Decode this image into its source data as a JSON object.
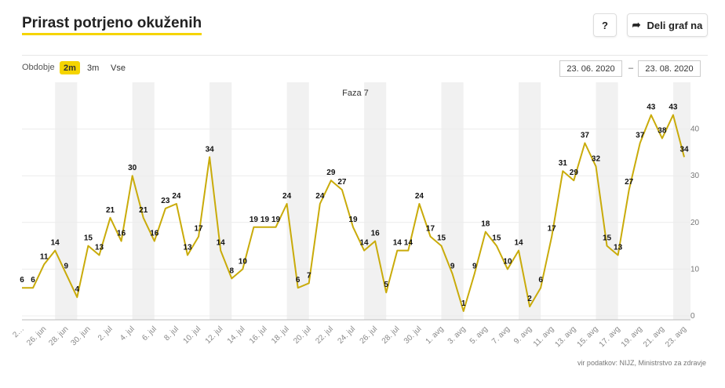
{
  "header": {
    "title": "Prirast potrjeno okuženih",
    "help": "?",
    "share": "Deli graf na"
  },
  "controls": {
    "period_label": "Obdobje",
    "periods": [
      "2m",
      "3m",
      "Vse"
    ],
    "active_period": "2m",
    "date_from": "23. 06. 2020",
    "date_separator": "–",
    "date_to": "23. 08. 2020"
  },
  "source": "vir podatkov: NIJZ, Ministrstvo za zdravje",
  "chart_data": {
    "type": "line",
    "annotation": "Faza 7",
    "color": "#c9ab0a",
    "grid": true,
    "categories": [
      "2…",
      null,
      "26. jun",
      null,
      "28. jun",
      null,
      "30. jun",
      null,
      "2. jul",
      null,
      "4. jul",
      null,
      "6. jul",
      null,
      "8. jul",
      null,
      "10. jul",
      null,
      "12. jul",
      null,
      "14. jul",
      null,
      "16. jul",
      null,
      "18. jul",
      null,
      "20. jul",
      null,
      "22. jul",
      null,
      "24. jul",
      null,
      "26. jul",
      null,
      "28. jul",
      null,
      "30. jul",
      null,
      "1. avg",
      null,
      "3. avg",
      null,
      "5. avg",
      null,
      "7. avg",
      null,
      "9. avg",
      null,
      "11. avg",
      null,
      "13. avg",
      null,
      "15. avg",
      null,
      "17. avg",
      null,
      "19. avg",
      null,
      "21. avg",
      null,
      "23. avg"
    ],
    "values": [
      6,
      6,
      11,
      14,
      9,
      4,
      15,
      13,
      21,
      16,
      30,
      21,
      16,
      23,
      24,
      13,
      17,
      34,
      14,
      8,
      10,
      19,
      19,
      19,
      24,
      6,
      7,
      24,
      29,
      27,
      19,
      14,
      16,
      5,
      14,
      14,
      24,
      17,
      15,
      9,
      1,
      9,
      18,
      15,
      10,
      14,
      2,
      6,
      17,
      31,
      29,
      37,
      32,
      15,
      13,
      27,
      37,
      43,
      38,
      43,
      34
    ],
    "ylim": [
      0,
      50
    ],
    "yticks": [
      0,
      10,
      20,
      30,
      40
    ]
  }
}
